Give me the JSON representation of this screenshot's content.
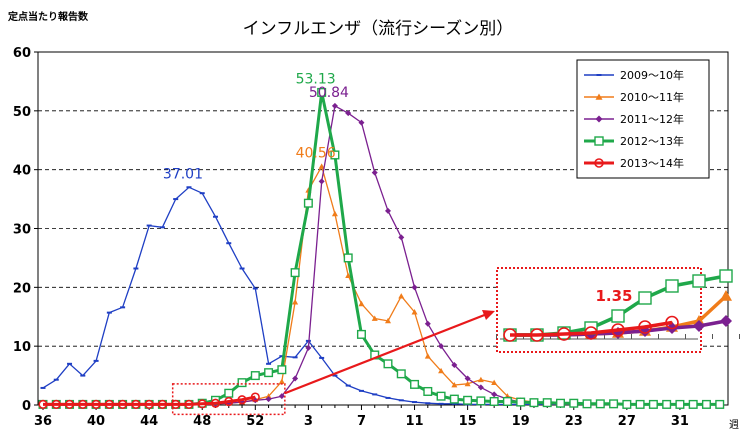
{
  "chart_data": {
    "type": "line",
    "title": "インフルエンザ（流行シーズン別）",
    "ylabel": "定点当たり報告数",
    "xunit": "週",
    "ylim": [
      0,
      60
    ],
    "yticks": [
      0,
      10,
      20,
      30,
      40,
      50,
      60
    ],
    "x_tick_labels": [
      "36",
      "40",
      "44",
      "48",
      "52",
      "3",
      "7",
      "11",
      "15",
      "19",
      "23",
      "27",
      "31"
    ],
    "x_note": "week index: 0 = week 36, 16 = week 52, 17 = week 1 ... 51 = week 35",
    "grid": "horizontal dashed",
    "legend_position": "top-right",
    "series": [
      {
        "name": "2009〜10年",
        "color": "#1f3fc4",
        "marker": "dash",
        "thick": false,
        "values": [
          2.9,
          4.3,
          7.0,
          5.0,
          7.5,
          15.7,
          16.6,
          23.2,
          30.5,
          30.2,
          35.0,
          37.01,
          36.0,
          32.0,
          27.5,
          23.2,
          19.8,
          7.0,
          8.3,
          8.1,
          10.9,
          8.0,
          5.0,
          3.3,
          2.4,
          1.8,
          1.2,
          0.8,
          0.5,
          0.3,
          0.2,
          0.2,
          0.1,
          0.1,
          0.1,
          0.1,
          0.1,
          0.1,
          0.1,
          0.1,
          0.1,
          0.1,
          0.1,
          0.1,
          0.1,
          0.1,
          0.1,
          0.1,
          0.1,
          0.1,
          0.1,
          0.1
        ]
      },
      {
        "name": "2010〜11年",
        "color": "#f07c1a",
        "marker": "triangle",
        "thick": false,
        "values": [
          0.1,
          0.1,
          0.1,
          0.1,
          0.1,
          0.1,
          0.1,
          0.1,
          0.1,
          0.1,
          0.1,
          0.1,
          0.1,
          0.2,
          0.3,
          0.5,
          0.9,
          1.5,
          4.0,
          17.5,
          36.5,
          40.56,
          32.5,
          22.0,
          17.2,
          14.7,
          14.3,
          18.5,
          15.8,
          8.3,
          5.8,
          3.4,
          3.6,
          4.3,
          3.8,
          1.5,
          0.8,
          0.5,
          0.3,
          0.2,
          0.1,
          0.1,
          0.1,
          0.1,
          0.1,
          0.1,
          0.1,
          0.1,
          0.1,
          0.1,
          0.1,
          0.1
        ]
      },
      {
        "name": "2011〜12年",
        "color": "#7b2090",
        "marker": "diamond",
        "thick": false,
        "values": [
          0.1,
          0.1,
          0.1,
          0.1,
          0.1,
          0.1,
          0.1,
          0.1,
          0.1,
          0.1,
          0.1,
          0.1,
          0.1,
          0.2,
          0.3,
          0.5,
          0.8,
          1.0,
          1.5,
          4.5,
          9.7,
          38.0,
          50.84,
          49.6,
          48.0,
          39.5,
          33.0,
          28.5,
          20.0,
          13.8,
          10.0,
          6.8,
          4.5,
          3.0,
          1.8,
          1.0,
          0.5,
          0.3,
          0.2,
          0.1,
          0.1,
          0.1,
          0.1,
          0.1,
          0.1,
          0.1,
          0.1,
          0.1,
          0.1,
          0.1,
          0.1,
          0.1
        ]
      },
      {
        "name": "2012〜13年",
        "color": "#1fa84a",
        "marker": "square",
        "thick": true,
        "values": [
          0.1,
          0.1,
          0.1,
          0.1,
          0.1,
          0.1,
          0.1,
          0.1,
          0.1,
          0.1,
          0.1,
          0.1,
          0.3,
          0.8,
          2.0,
          3.8,
          5.0,
          5.5,
          6.0,
          22.5,
          34.3,
          53.13,
          42.5,
          25.0,
          12.0,
          8.5,
          7.0,
          5.3,
          3.5,
          2.3,
          1.5,
          1.0,
          0.8,
          0.7,
          0.6,
          0.6,
          0.5,
          0.4,
          0.4,
          0.3,
          0.3,
          0.2,
          0.2,
          0.2,
          0.1,
          0.1,
          0.1,
          0.1,
          0.1,
          0.1,
          0.1,
          0.1
        ]
      },
      {
        "name": "2013〜14年",
        "color": "#e8191b",
        "marker": "circle",
        "thick": true,
        "values": [
          0.1,
          0.1,
          0.1,
          0.1,
          0.1,
          0.1,
          0.1,
          0.1,
          0.1,
          0.1,
          0.1,
          0.1,
          0.2,
          0.3,
          0.6,
          0.9,
          1.35
        ]
      }
    ],
    "peak_labels": [
      {
        "text": "37.01",
        "series": 0,
        "index": 11,
        "color": "#1f3fc4"
      },
      {
        "text": "40.56",
        "series": 1,
        "index": 21,
        "color": "#f07c1a"
      },
      {
        "text": "53.13",
        "series": 3,
        "index": 21,
        "color": "#1fa84a"
      },
      {
        "text": "50.84",
        "series": 2,
        "index": 22,
        "color": "#7b2090"
      }
    ],
    "zoom_inset": {
      "label": "1.35",
      "range": [
        10,
        18
      ],
      "scale": 4
    }
  }
}
